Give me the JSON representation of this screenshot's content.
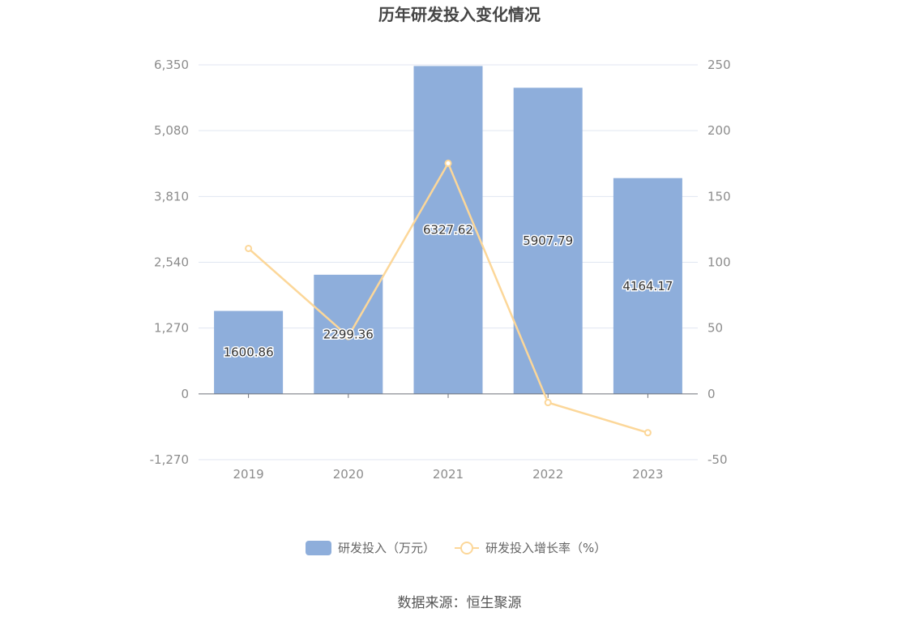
{
  "title": "历年研发投入变化情况",
  "source": "数据来源：恒生聚源",
  "chart_data": {
    "type": "bar",
    "title": "历年研发投入变化情况",
    "categories": [
      "2019",
      "2020",
      "2021",
      "2022",
      "2023"
    ],
    "series": [
      {
        "name": "研发投入（万元）",
        "type": "bar",
        "axis": "left",
        "color": "#8eaedb",
        "values": [
          1600.86,
          2299.36,
          6327.62,
          5907.79,
          4164.17
        ],
        "labels": [
          "1600.86",
          "2299.36",
          "6327.62",
          "5907.79",
          "4164.17"
        ]
      },
      {
        "name": "研发投入增长率（%）",
        "type": "line",
        "axis": "right",
        "color": "#fcd799",
        "values": [
          110.5,
          43.6,
          175.2,
          -6.6,
          -29.5
        ]
      }
    ],
    "y_left": {
      "min": -1270,
      "max": 6350,
      "ticks": [
        -1270,
        0,
        1270,
        2540,
        3810,
        5080,
        6350
      ],
      "tick_labels": [
        "-1,270",
        "0",
        "1,270",
        "2,540",
        "3,810",
        "5,080",
        "6,350"
      ]
    },
    "y_right": {
      "min": -50,
      "max": 250,
      "ticks": [
        -50,
        0,
        50,
        100,
        150,
        200,
        250
      ],
      "tick_labels": [
        "-50",
        "0",
        "50",
        "100",
        "150",
        "200",
        "250"
      ]
    },
    "grid": true,
    "legend_position": "bottom-center"
  }
}
